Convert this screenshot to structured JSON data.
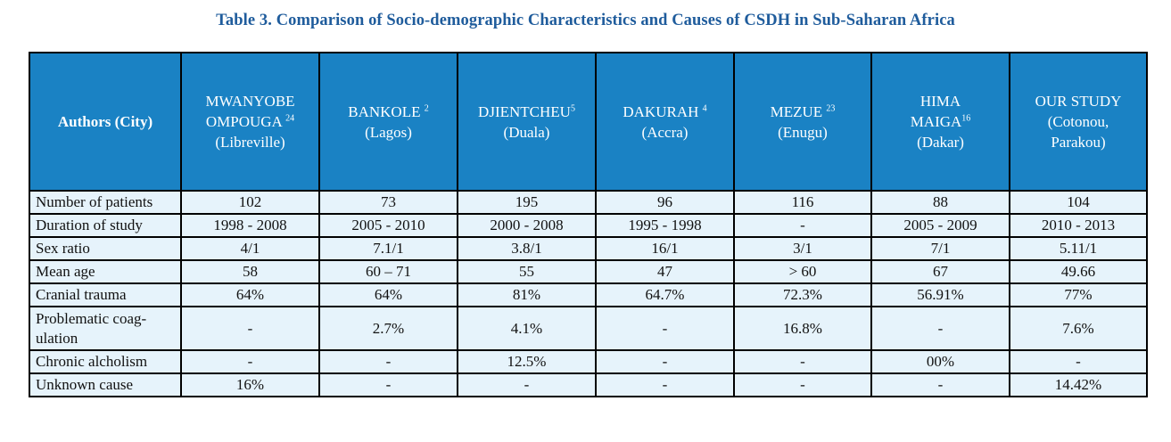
{
  "title": "Table 3. Comparison of Socio-demographic Characteristics and Causes of CSDH in Sub-Saharan Africa",
  "header": {
    "first": "Authors (City)",
    "studies": [
      {
        "lines": [
          "MWANYOBE",
          "OMPOUGA"
        ],
        "sup": "24",
        "city": "(Libreville)"
      },
      {
        "lines": [
          "BANKOLE"
        ],
        "sup": "2",
        "city": "(Lagos)"
      },
      {
        "lines": [
          "DJIENTCHEU"
        ],
        "sup": "5",
        "city": "(Duala)"
      },
      {
        "lines": [
          "DAKURAH"
        ],
        "sup": "4",
        "city": "(Accra)"
      },
      {
        "lines": [
          "MEZUE"
        ],
        "sup": "23",
        "city": "(Enugu)"
      },
      {
        "lines": [
          "HIMA",
          "MAIGA"
        ],
        "sup": "16",
        "city": "(Dakar)"
      },
      {
        "lines": [
          "OUR STUDY"
        ],
        "sup": "",
        "city": "(Cotonou, Parakou)"
      }
    ]
  },
  "rows": [
    {
      "label": "Number of patients",
      "values": [
        "102",
        "73",
        "195",
        "96",
        "116",
        "88",
        "104"
      ]
    },
    {
      "label": "Duration of study",
      "values": [
        "1998 - 2008",
        "2005 - 2010",
        "2000 - 2008",
        "1995 - 1998",
        "-",
        "2005 - 2009",
        "2010 - 2013"
      ]
    },
    {
      "label": "Sex ratio",
      "values": [
        "4/1",
        "7.1/1",
        "3.8/1",
        "16/1",
        "3/1",
        "7/1",
        "5.11/1"
      ]
    },
    {
      "label": "Mean age",
      "values": [
        "58",
        "60 – 71",
        "55",
        "47",
        "> 60",
        "67",
        "49.66"
      ]
    },
    {
      "label": "Cranial trauma",
      "values": [
        "64%",
        "64%",
        "81%",
        "64.7%",
        "72.3%",
        "56.91%",
        "77%"
      ]
    },
    {
      "label": "Problematic coag-ulation",
      "values": [
        "-",
        "2.7%",
        "4.1%",
        "-",
        "16.8%",
        "-",
        "7.6%"
      ]
    },
    {
      "label": "Chronic alcholism",
      "values": [
        "-",
        "-",
        "12.5%",
        "-",
        "-",
        "00%",
        "-"
      ]
    },
    {
      "label": "Unknown cause",
      "values": [
        "16%",
        "-",
        "-",
        "-",
        "-",
        "-",
        "14.42%"
      ]
    }
  ],
  "colors": {
    "title": "#1f5c9c",
    "header_bg": "#1a82c4",
    "row_bg": "#e6f3fb"
  }
}
